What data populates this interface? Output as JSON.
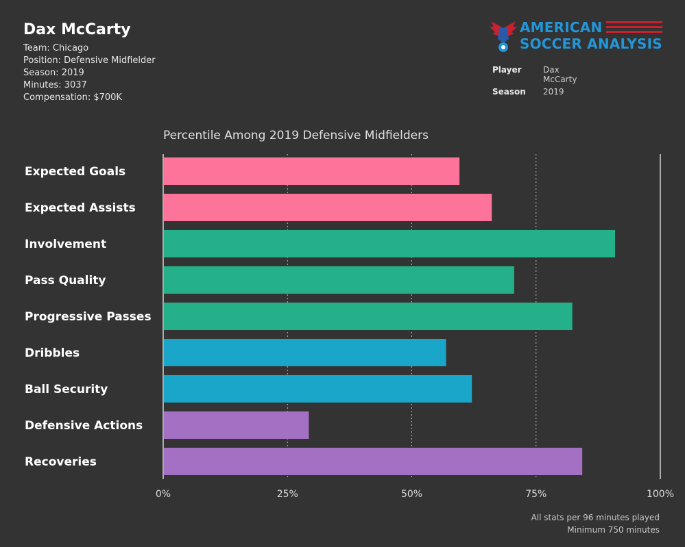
{
  "player": {
    "name": "Dax McCarty",
    "team": "Team: Chicago",
    "position": "Position: Defensive Midfielder",
    "season": "Season: 2019",
    "minutes": "Minutes: 3037",
    "compensation": "Compensation: $700K"
  },
  "logo": {
    "line1": "AMERICAN",
    "line2": "SOCCER ANALYSIS",
    "colors": {
      "text": "#2196d9",
      "stripes": "#c8202f"
    }
  },
  "filters": [
    {
      "label": "Player",
      "value": "Dax McCarty"
    },
    {
      "label": "Season",
      "value": "2019"
    }
  ],
  "footnote": {
    "line1": "All stats per 96 minutes played",
    "line2": "Minimum 750 minutes"
  },
  "chart_data": {
    "type": "bar",
    "orientation": "horizontal",
    "title": "Percentile Among 2019 Defensive Midfielders",
    "xlabel": "",
    "ylabel": "",
    "xlim": [
      0,
      100
    ],
    "ticks": [
      0,
      25,
      50,
      75,
      100
    ],
    "tick_labels": [
      "0%",
      "25%",
      "50%",
      "75%",
      "100%"
    ],
    "grid": true,
    "categories": [
      "Expected Goals",
      "Expected Assists",
      "Involvement",
      "Pass Quality",
      "Progressive Passes",
      "Dribbles",
      "Ball Security",
      "Defensive Actions",
      "Recoveries"
    ],
    "values": [
      59.6,
      66.1,
      90.9,
      70.6,
      82.3,
      56.9,
      62.1,
      29.3,
      84.3
    ],
    "colors": [
      "#fd7399",
      "#fd7399",
      "#24b089",
      "#24b089",
      "#24b089",
      "#1aa6c8",
      "#1aa6c8",
      "#a470c4",
      "#a470c4"
    ]
  }
}
